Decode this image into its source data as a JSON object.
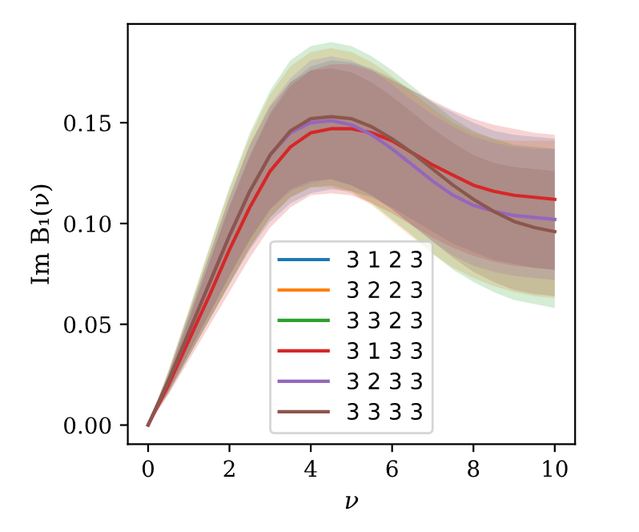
{
  "chart_data": {
    "type": "line",
    "xlabel": "ν",
    "ylabel": "Im B₁(ν)",
    "x": [
      0,
      0.5,
      1,
      1.5,
      2,
      2.5,
      3,
      3.5,
      4,
      4.5,
      5,
      5.5,
      6,
      6.5,
      7,
      7.5,
      8,
      8.5,
      9,
      9.5,
      10
    ],
    "series": [
      {
        "name": "3 1 2 3",
        "color": "#1f77b4",
        "values": [
          null,
          null,
          null,
          null,
          null,
          null,
          null,
          null,
          null,
          null,
          null,
          null,
          null,
          null,
          null,
          null,
          null,
          null,
          null,
          null,
          null
        ],
        "lower": [
          0,
          0.016,
          0.034,
          0.052,
          0.07,
          0.087,
          0.101,
          0.11,
          0.115,
          0.117,
          0.116,
          0.113,
          0.108,
          0.102,
          0.096,
          0.09,
          0.086,
          0.082,
          0.08,
          0.078,
          0.077
        ],
        "upper": [
          0,
          0.025,
          0.053,
          0.081,
          0.109,
          0.134,
          0.155,
          0.17,
          0.178,
          0.181,
          0.18,
          0.177,
          0.172,
          0.166,
          0.16,
          0.155,
          0.15,
          0.146,
          0.144,
          0.143,
          0.142
        ]
      },
      {
        "name": "3 2 2 3",
        "color": "#ff7f0e",
        "values": [
          null,
          null,
          null,
          null,
          null,
          null,
          null,
          null,
          null,
          null,
          null,
          null,
          null,
          null,
          null,
          null,
          null,
          null,
          null,
          null,
          null
        ],
        "lower": [
          0,
          0.016,
          0.034,
          0.052,
          0.07,
          0.088,
          0.103,
          0.113,
          0.118,
          0.118,
          0.115,
          0.109,
          0.101,
          0.093,
          0.085,
          0.078,
          0.073,
          0.069,
          0.066,
          0.064,
          0.063
        ],
        "upper": [
          0,
          0.027,
          0.057,
          0.087,
          0.117,
          0.143,
          0.164,
          0.178,
          0.185,
          0.187,
          0.185,
          0.18,
          0.173,
          0.165,
          0.157,
          0.15,
          0.145,
          0.142,
          0.141,
          0.141,
          0.141
        ]
      },
      {
        "name": "3 3 2 3",
        "color": "#2ca02c",
        "values": [
          null,
          null,
          null,
          null,
          null,
          null,
          null,
          null,
          null,
          null,
          null,
          null,
          null,
          null,
          null,
          null,
          null,
          null,
          null,
          null,
          null
        ],
        "lower": [
          0,
          0.016,
          0.034,
          0.052,
          0.07,
          0.088,
          0.103,
          0.113,
          0.118,
          0.119,
          0.116,
          0.11,
          0.102,
          0.094,
          0.085,
          0.077,
          0.071,
          0.066,
          0.062,
          0.06,
          0.058
        ],
        "upper": [
          0,
          0.027,
          0.057,
          0.088,
          0.118,
          0.145,
          0.166,
          0.181,
          0.188,
          0.19,
          0.188,
          0.183,
          0.176,
          0.168,
          0.16,
          0.152,
          0.146,
          0.142,
          0.139,
          0.138,
          0.137
        ]
      },
      {
        "name": "3 1 3 3",
        "color": "#d62728",
        "values": [
          0,
          0.02,
          0.042,
          0.064,
          0.087,
          0.108,
          0.126,
          0.138,
          0.145,
          0.147,
          0.147,
          0.145,
          0.141,
          0.135,
          0.129,
          0.124,
          0.119,
          0.116,
          0.114,
          0.113,
          0.112
        ],
        "lower": [
          0,
          0.015,
          0.032,
          0.049,
          0.066,
          0.083,
          0.098,
          0.108,
          0.114,
          0.115,
          0.114,
          0.11,
          0.105,
          0.099,
          0.093,
          0.088,
          0.084,
          0.081,
          0.079,
          0.078,
          0.077
        ],
        "upper": [
          0,
          0.025,
          0.052,
          0.08,
          0.108,
          0.133,
          0.154,
          0.168,
          0.176,
          0.179,
          0.179,
          0.176,
          0.171,
          0.166,
          0.161,
          0.156,
          0.152,
          0.149,
          0.147,
          0.145,
          0.144
        ]
      },
      {
        "name": "3 2 3 3",
        "color": "#9467bd",
        "values": [
          0,
          0.022,
          0.046,
          0.07,
          0.094,
          0.116,
          0.134,
          0.145,
          0.15,
          0.151,
          0.149,
          0.144,
          0.137,
          0.129,
          0.121,
          0.114,
          0.109,
          0.106,
          0.104,
          0.103,
          0.102
        ],
        "lower": [
          0,
          0.017,
          0.036,
          0.055,
          0.074,
          0.092,
          0.107,
          0.116,
          0.12,
          0.122,
          0.119,
          0.114,
          0.107,
          0.099,
          0.091,
          0.084,
          0.079,
          0.076,
          0.074,
          0.073,
          0.072
        ],
        "upper": [
          0,
          0.026,
          0.055,
          0.084,
          0.113,
          0.139,
          0.159,
          0.172,
          0.181,
          0.183,
          0.181,
          0.176,
          0.169,
          0.161,
          0.154,
          0.148,
          0.143,
          0.14,
          0.138,
          0.137,
          0.137
        ]
      },
      {
        "name": "3 3 3 3",
        "color": "#8c564b",
        "values": [
          0,
          0.022,
          0.046,
          0.07,
          0.094,
          0.116,
          0.134,
          0.146,
          0.152,
          0.153,
          0.152,
          0.148,
          0.142,
          0.135,
          0.127,
          0.119,
          0.112,
          0.106,
          0.101,
          0.098,
          0.096
        ],
        "lower": [
          0,
          0.017,
          0.036,
          0.055,
          0.074,
          0.092,
          0.107,
          0.117,
          0.121,
          0.122,
          0.119,
          0.114,
          0.107,
          0.099,
          0.091,
          0.083,
          0.076,
          0.071,
          0.067,
          0.065,
          0.064
        ],
        "upper": [
          0,
          0.026,
          0.055,
          0.084,
          0.113,
          0.139,
          0.158,
          0.17,
          0.176,
          0.177,
          0.175,
          0.17,
          0.163,
          0.155,
          0.147,
          0.14,
          0.134,
          0.13,
          0.128,
          0.127,
          0.126
        ]
      }
    ],
    "xlim": [
      -0.5,
      10.5
    ],
    "ylim": [
      -0.0095,
      0.199
    ],
    "xticks": [
      0,
      2,
      4,
      6,
      8,
      10
    ],
    "yticks": [
      {
        "value": 0,
        "label": "0.00"
      },
      {
        "value": 0.05,
        "label": "0.05"
      },
      {
        "value": 0.1,
        "label": "0.10"
      },
      {
        "value": 0.15,
        "label": "0.15"
      }
    ],
    "legend": "bottom",
    "grid": false,
    "marker": "none",
    "line_style": "solid"
  }
}
